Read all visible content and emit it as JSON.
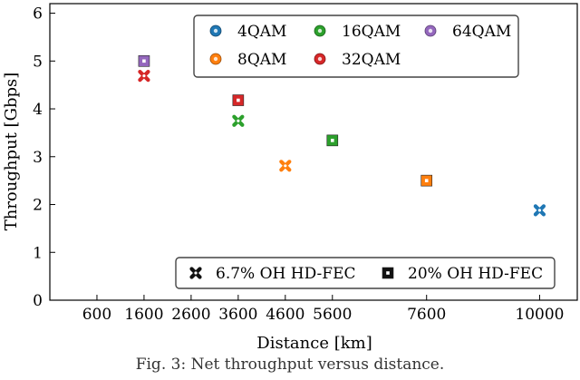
{
  "chart_data": {
    "type": "scatter",
    "xlabel": "Distance [km]",
    "ylabel": "Throughput [Gbps]",
    "xlim": [
      -400,
      10800
    ],
    "ylim": [
      0,
      6.2
    ],
    "x_ticks": [
      600,
      1600,
      2600,
      3600,
      4600,
      5600,
      7600,
      10000
    ],
    "y_ticks": [
      0,
      1,
      2,
      3,
      4,
      5,
      6
    ],
    "grid": false,
    "series": [
      {
        "name": "4QAM",
        "color": "#1f77b4",
        "points": [
          {
            "x": 10000,
            "y": 1.88,
            "fec": "6.7% OH HD-FEC"
          }
        ]
      },
      {
        "name": "8QAM",
        "color": "#ff7f0e",
        "points": [
          {
            "x": 4600,
            "y": 2.81,
            "fec": "6.7% OH HD-FEC"
          },
          {
            "x": 7600,
            "y": 2.5,
            "fec": "20% OH HD-FEC"
          }
        ]
      },
      {
        "name": "16QAM",
        "color": "#2ca02c",
        "points": [
          {
            "x": 3600,
            "y": 3.75,
            "fec": "6.7% OH HD-FEC"
          },
          {
            "x": 5600,
            "y": 3.34,
            "fec": "20% OH HD-FEC"
          }
        ]
      },
      {
        "name": "32QAM",
        "color": "#d62728",
        "points": [
          {
            "x": 1600,
            "y": 4.69,
            "fec": "6.7% OH HD-FEC"
          },
          {
            "x": 3600,
            "y": 4.18,
            "fec": "20% OH HD-FEC"
          }
        ]
      },
      {
        "name": "64QAM",
        "color": "#9467bd",
        "points": [
          {
            "x": 1600,
            "y": 5.0,
            "fec": "20% OH HD-FEC"
          }
        ]
      }
    ],
    "legend_position": "top-right",
    "marker_legend_position": "bottom-right",
    "marker_legend": [
      {
        "label": "6.7% OH HD-FEC",
        "marker": "x-cross"
      },
      {
        "label": "20% OH HD-FEC",
        "marker": "square"
      }
    ]
  },
  "caption": "Fig. 3: Net throughput versus distance."
}
